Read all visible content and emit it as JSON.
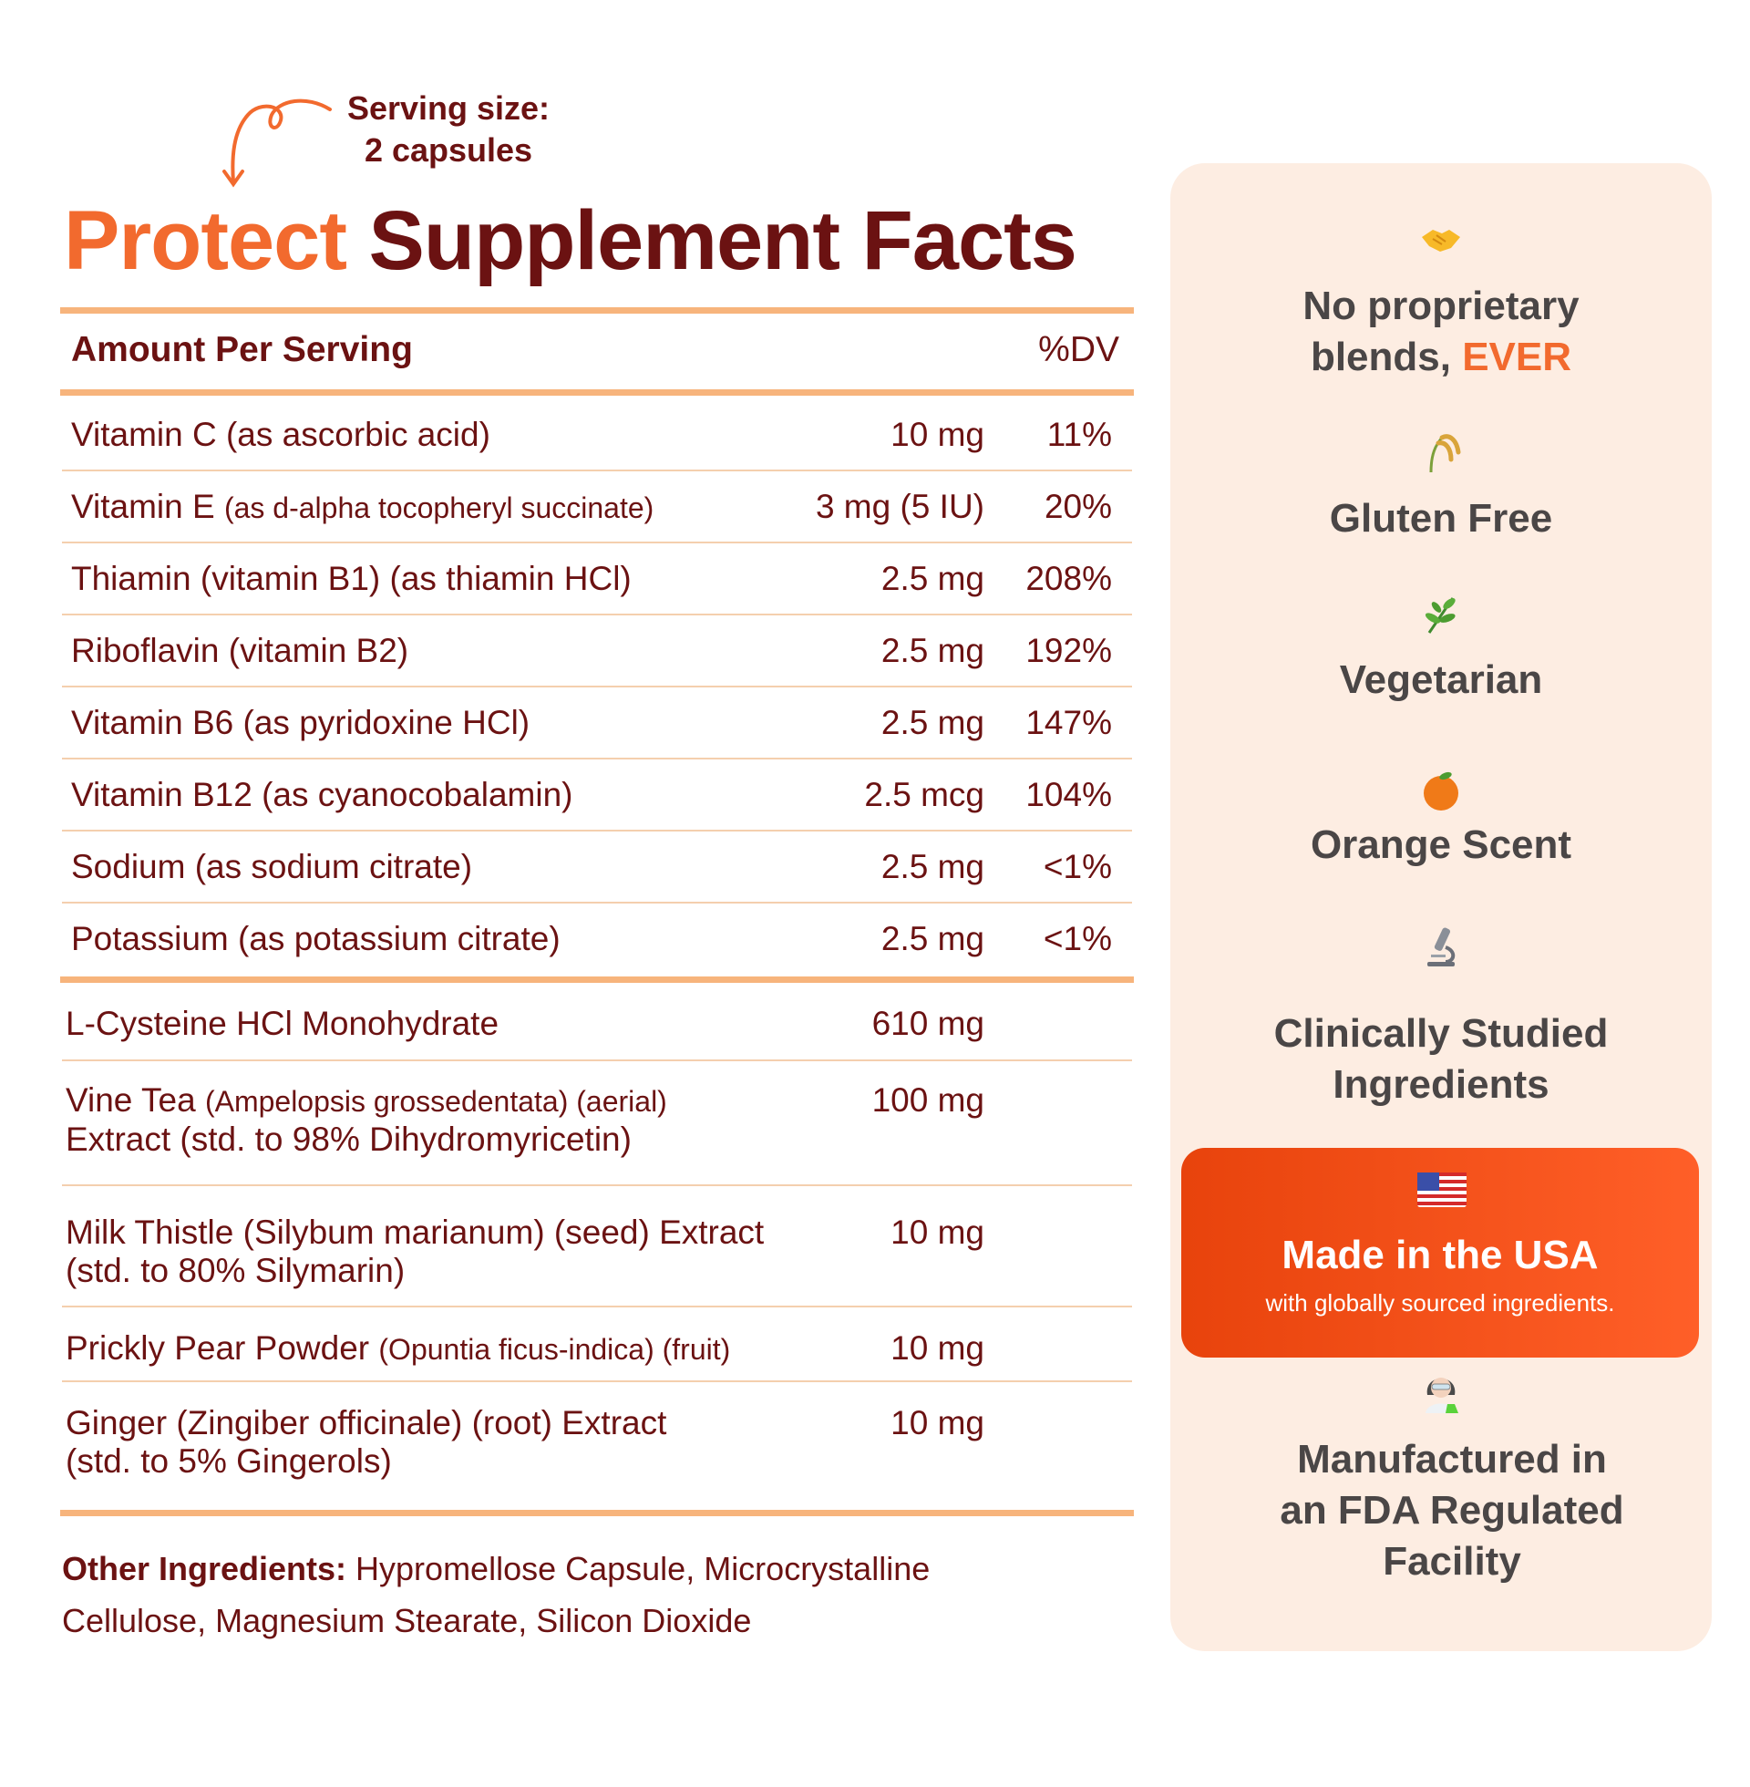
{
  "serving": {
    "line1": "Serving size:",
    "line2": "2 capsules"
  },
  "title": {
    "accent": "Protect",
    "main": "Supplement Facts"
  },
  "header": {
    "amount": "Amount Per Serving",
    "dv": "%DV"
  },
  "vitamins": [
    {
      "name": "Vitamin C (as ascorbic acid)",
      "note": "",
      "amount": "10 mg",
      "dv": "11%"
    },
    {
      "name": "Vitamin E ",
      "note": "(as d-alpha tocopheryl succinate)",
      "amount": "3 mg (5 IU)",
      "dv": "20%"
    },
    {
      "name": "Thiamin (vitamin B1) (as thiamin HCl)",
      "note": "",
      "amount": "2.5 mg",
      "dv": "208%"
    },
    {
      "name": "Riboflavin (vitamin B2)",
      "note": "",
      "amount": "2.5 mg",
      "dv": "192%"
    },
    {
      "name": "Vitamin B6 (as pyridoxine HCl)",
      "note": "",
      "amount": "2.5 mg",
      "dv": "147%"
    },
    {
      "name": "Vitamin B12 (as cyanocobalamin)",
      "note": "",
      "amount": "2.5 mcg",
      "dv": "104%"
    },
    {
      "name": "Sodium (as sodium citrate)",
      "note": "",
      "amount": "2.5 mg",
      "dv": "<1%"
    },
    {
      "name": "Potassium (as potassium citrate)",
      "note": "",
      "amount": "2.5 mg",
      "dv": "<1%"
    }
  ],
  "ingredients": [
    {
      "name": "L-Cysteine HCl Monohydrate",
      "note": "",
      "line2": "",
      "amount": "610 mg"
    },
    {
      "name": "Vine Tea ",
      "note": "(Ampelopsis grossedentata) (aerial)",
      "line2": "Extract (std. to 98% Dihydromyricetin)",
      "amount": "100 mg"
    },
    {
      "name": "Milk Thistle (Silybum marianum) (seed) Extract",
      "note": "",
      "line2": "(std. to 80% Silymarin)",
      "amount": "10 mg"
    },
    {
      "name": "Prickly Pear Powder ",
      "note": "(Opuntia ficus-indica) (fruit)",
      "line2": "",
      "amount": "10 mg"
    },
    {
      "name": "Ginger (Zingiber officinale) (root) Extract",
      "note": "",
      "line2": "(std. to 5% Gingerols)",
      "amount": "10 mg"
    }
  ],
  "other": {
    "label": "Other Ingredients:",
    "text": " Hypromellose Capsule, Microcrystalline Cellulose, Magnesium Stearate, Silicon Dioxide"
  },
  "features": [
    {
      "icon": "handshake-icon",
      "line1": "No proprietary",
      "line2": "blends, ",
      "highlight": "EVER"
    },
    {
      "icon": "wheat-icon",
      "line1": "Gluten Free"
    },
    {
      "icon": "herb-icon",
      "line1": "Vegetarian"
    },
    {
      "icon": "orange-icon",
      "line1": "Orange Scent"
    },
    {
      "icon": "microscope-icon",
      "line1": "Clinically Studied",
      "line2": "Ingredients"
    },
    {
      "icon": "us-flag-icon",
      "line1": "Made in the USA",
      "line2": "with globally sourced ingredients."
    },
    {
      "icon": "scientist-icon",
      "line1": "Manufactured in",
      "line2": "an FDA Regulated",
      "line3": "Facility"
    }
  ],
  "colors": {
    "accent": "#f26a2e",
    "text": "#6b1212",
    "rule": "#f7b47c",
    "panel": "#fdede2",
    "usa_box": "#f0501a",
    "feature_text": "#4a4646"
  }
}
